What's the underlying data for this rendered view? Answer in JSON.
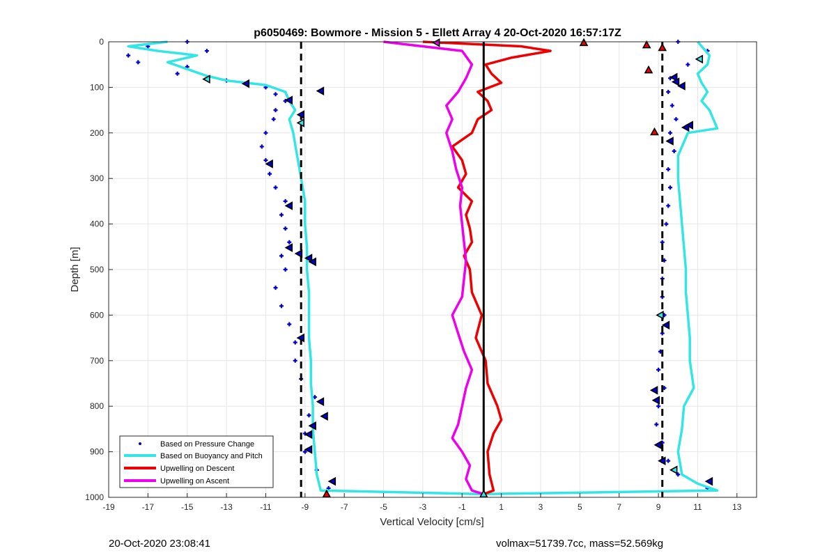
{
  "chart_data": {
    "type": "scatter",
    "title": "p6050469: Bowmore - Mission 5 - Ellett Array 4 20-Oct-2020 16:57:17Z",
    "xlabel": "Vertical Velocity [cm/s]",
    "ylabel": "Depth [m]",
    "xlim": [
      -19,
      14
    ],
    "ylim": [
      0,
      1000
    ],
    "y_reversed": true,
    "grid": true,
    "x_ticks": [
      -19,
      -17,
      -15,
      -13,
      -11,
      -9,
      -7,
      -5,
      -3,
      -1,
      1,
      3,
      5,
      7,
      9,
      11,
      13
    ],
    "y_ticks": [
      0,
      100,
      200,
      300,
      400,
      500,
      600,
      700,
      800,
      900,
      1000
    ],
    "legend_position": "bottom-left",
    "legend": [
      {
        "name": "Based on Pressure Change",
        "color": "#0000cc",
        "style": "points"
      },
      {
        "name": "Based on Buoyancy and Pitch",
        "color": "#33e6e6",
        "style": "line"
      },
      {
        "name": "Upwelling on Descent",
        "color": "#ee0000",
        "style": "line"
      },
      {
        "name": "Upwelling on Ascent",
        "color": "#ee00ee",
        "style": "line"
      }
    ],
    "reference_lines": [
      {
        "x": -9.2,
        "style": "dashed",
        "color": "#000000"
      },
      {
        "x": 0.1,
        "style": "solid",
        "color": "#000000"
      },
      {
        "x": 9.2,
        "style": "dashed",
        "color": "#000000"
      }
    ],
    "series": [
      {
        "name": "Based on Buoyancy and Pitch",
        "color": "#33e6e6",
        "profile": "descent",
        "depth": [
          0,
          10,
          20,
          30,
          45,
          60,
          75,
          85,
          95,
          110,
          130,
          150,
          170,
          200,
          250,
          300,
          350,
          400,
          450,
          500,
          550,
          600,
          650,
          700,
          750,
          800,
          850,
          900,
          950,
          985,
          993
        ],
        "velocity": [
          -16.0,
          -18.0,
          -16.5,
          -14.5,
          -16.0,
          -15.0,
          -14.0,
          -13.0,
          -11.0,
          -10.0,
          -9.8,
          -9.5,
          -9.8,
          -9.6,
          -9.4,
          -9.2,
          -9.0,
          -9.0,
          -8.9,
          -8.9,
          -8.8,
          -8.8,
          -8.8,
          -8.7,
          -8.7,
          -8.6,
          -8.6,
          -8.5,
          -8.4,
          -8.2,
          0
        ]
      },
      {
        "name": "Based on Buoyancy and Pitch",
        "color": "#33e6e6",
        "profile": "ascent",
        "depth": [
          993,
          985,
          970,
          950,
          900,
          850,
          800,
          760,
          700,
          650,
          600,
          550,
          500,
          450,
          400,
          350,
          300,
          250,
          200,
          190,
          170,
          150,
          130,
          110,
          90,
          70,
          50,
          30,
          10,
          0
        ],
        "velocity": [
          0,
          12.0,
          11.0,
          10.2,
          10.0,
          10.2,
          10.3,
          10.8,
          10.6,
          10.6,
          10.5,
          10.4,
          10.4,
          10.3,
          10.2,
          10.1,
          10.0,
          10.0,
          10.5,
          12.0,
          11.8,
          11.6,
          11.2,
          11.5,
          11.2,
          11.0,
          11.5,
          11.6,
          11.2,
          11.0
        ]
      },
      {
        "name": "Based on Pressure Change",
        "color": "#0000cc",
        "profile": "descent",
        "depth": [
          0,
          10,
          20,
          30,
          45,
          55,
          70,
          85,
          100,
          115,
          130,
          150,
          170,
          200,
          230,
          260,
          290,
          320,
          350,
          380,
          410,
          440,
          470,
          500,
          540,
          580,
          620,
          660,
          700,
          740,
          780,
          820,
          860,
          900,
          940,
          980
        ],
        "velocity": [
          -15.0,
          -17.0,
          -14.0,
          -18.0,
          -17.5,
          -15.0,
          -15.5,
          -13.0,
          -11.0,
          -10.5,
          -10.0,
          -10.5,
          -10.6,
          -11.0,
          -11.2,
          -11.0,
          -10.8,
          -10.5,
          -10.0,
          -10.2,
          -10.0,
          -9.8,
          -10.2,
          -10.0,
          -10.5,
          -10.2,
          -9.8,
          -9.5,
          -9.5,
          -9.2,
          -8.5,
          -8.8,
          -9.0,
          -9.0,
          -8.4,
          -7.8
        ]
      },
      {
        "name": "Based on Pressure Change",
        "color": "#0000cc",
        "profile": "ascent",
        "depth": [
          980,
          950,
          920,
          880,
          840,
          800,
          760,
          720,
          680,
          640,
          600,
          560,
          520,
          480,
          440,
          400,
          360,
          320,
          280,
          240,
          200,
          170,
          140,
          110,
          80,
          50,
          20,
          0
        ],
        "velocity": [
          11.5,
          10.0,
          9.5,
          9.2,
          8.9,
          9.0,
          9.3,
          9.0,
          9.1,
          9.2,
          9.3,
          9.2,
          9.2,
          9.3,
          9.2,
          9.4,
          9.5,
          9.6,
          9.5,
          9.8,
          9.6,
          9.9,
          9.7,
          9.5,
          9.6,
          10.5,
          11.5,
          10.0
        ]
      },
      {
        "name": "Upwelling on Descent",
        "color": "#ee0000",
        "depth": [
          0,
          10,
          20,
          35,
          50,
          70,
          90,
          110,
          130,
          150,
          170,
          200,
          230,
          260,
          290,
          320,
          350,
          380,
          410,
          440,
          470,
          500,
          550,
          600,
          650,
          700,
          750,
          800,
          830,
          860,
          900,
          950,
          985,
          993
        ],
        "velocity": [
          -3.0,
          2.0,
          3.5,
          1.5,
          0.2,
          0.5,
          1.0,
          -0.2,
          0.3,
          0.5,
          -0.2,
          -0.5,
          -1.5,
          -1.0,
          -0.8,
          -1.2,
          -0.5,
          -0.8,
          -0.6,
          -0.5,
          -0.9,
          -0.6,
          -0.5,
          0.0,
          -0.3,
          0.2,
          0.3,
          0.8,
          1.0,
          0.6,
          0.3,
          0.4,
          0.6,
          0.1
        ]
      },
      {
        "name": "Upwelling on Ascent",
        "color": "#ee00ee",
        "depth": [
          993,
          985,
          960,
          930,
          900,
          870,
          840,
          800,
          760,
          720,
          680,
          640,
          600,
          560,
          520,
          480,
          440,
          400,
          360,
          320,
          280,
          240,
          200,
          170,
          140,
          110,
          80,
          50,
          20,
          0
        ],
        "velocity": [
          0.1,
          -0.5,
          -0.8,
          -0.6,
          -1.0,
          -1.5,
          -1.2,
          -1.0,
          -0.8,
          -0.5,
          -0.9,
          -1.2,
          -1.5,
          -1.0,
          -0.9,
          -0.8,
          -0.9,
          -1.0,
          -1.1,
          -1.0,
          -1.3,
          -1.5,
          -1.8,
          -1.5,
          -1.8,
          -1.2,
          -0.8,
          -0.5,
          -1.0,
          -5.0
        ]
      }
    ],
    "markers": [
      {
        "type": "triangle-left",
        "x": -14.0,
        "y": 82,
        "fill": "#33e6e6"
      },
      {
        "type": "triangle-left",
        "x": -12.0,
        "y": 92,
        "fill": "#0000cc"
      },
      {
        "type": "triangle-left",
        "x": -8.2,
        "y": 108,
        "fill": "#0000cc"
      },
      {
        "type": "triangle-left",
        "x": -9.8,
        "y": 128,
        "fill": "#0000cc"
      },
      {
        "type": "triangle-left",
        "x": -9.2,
        "y": 160,
        "fill": "#0000cc"
      },
      {
        "type": "triangle-left",
        "x": -9.2,
        "y": 178,
        "fill": "#33e6e6"
      },
      {
        "type": "triangle-left",
        "x": -10.8,
        "y": 268,
        "fill": "#0000cc"
      },
      {
        "type": "triangle-left",
        "x": -9.8,
        "y": 360,
        "fill": "#0000cc"
      },
      {
        "type": "triangle-left",
        "x": -9.8,
        "y": 452,
        "fill": "#0000cc"
      },
      {
        "type": "triangle-left",
        "x": -9.3,
        "y": 465,
        "fill": "#0000cc"
      },
      {
        "type": "triangle-left",
        "x": -8.8,
        "y": 475,
        "fill": "#0000cc"
      },
      {
        "type": "triangle-left",
        "x": -8.6,
        "y": 483,
        "fill": "#0000cc"
      },
      {
        "type": "triangle-left",
        "x": -9.2,
        "y": 650,
        "fill": "#0000cc"
      },
      {
        "type": "triangle-left",
        "x": -8.2,
        "y": 790,
        "fill": "#0000cc"
      },
      {
        "type": "triangle-left",
        "x": -8.0,
        "y": 822,
        "fill": "#0000cc"
      },
      {
        "type": "triangle-left",
        "x": -8.6,
        "y": 843,
        "fill": "#0000cc"
      },
      {
        "type": "triangle-left",
        "x": -8.8,
        "y": 862,
        "fill": "#0000cc"
      },
      {
        "type": "triangle-left",
        "x": -8.8,
        "y": 895,
        "fill": "#0000cc"
      },
      {
        "type": "triangle-left",
        "x": -7.6,
        "y": 965,
        "fill": "#0000cc"
      },
      {
        "type": "triangle-up",
        "x": -7.9,
        "y": 993,
        "fill": "#ee0000"
      },
      {
        "type": "triangle-left",
        "x": -2.3,
        "y": 2,
        "fill": "#ee00ee"
      },
      {
        "type": "triangle-up",
        "x": 0.1,
        "y": 993,
        "fill": "#33e6e6"
      },
      {
        "type": "triangle-up",
        "x": 5.2,
        "y": 2,
        "fill": "#ee0000"
      },
      {
        "type": "triangle-up",
        "x": 8.4,
        "y": 7,
        "fill": "#ee0000"
      },
      {
        "type": "triangle-up",
        "x": 9.2,
        "y": 13,
        "fill": "#ee0000"
      },
      {
        "type": "triangle-left",
        "x": 11.1,
        "y": 38,
        "fill": "#33e6e6"
      },
      {
        "type": "triangle-up",
        "x": 8.5,
        "y": 62,
        "fill": "#ee0000"
      },
      {
        "type": "triangle-left",
        "x": 9.8,
        "y": 78,
        "fill": "#0000cc"
      },
      {
        "type": "triangle-left",
        "x": 9.9,
        "y": 88,
        "fill": "#0000cc"
      },
      {
        "type": "triangle-left",
        "x": 10.2,
        "y": 97,
        "fill": "#0000cc"
      },
      {
        "type": "triangle-left",
        "x": 10.6,
        "y": 183,
        "fill": "#0000cc"
      },
      {
        "type": "triangle-left",
        "x": 10.4,
        "y": 188,
        "fill": "#0000cc"
      },
      {
        "type": "triangle-up",
        "x": 8.8,
        "y": 198,
        "fill": "#ee0000"
      },
      {
        "type": "triangle-left",
        "x": 9.6,
        "y": 218,
        "fill": "#0000cc"
      },
      {
        "type": "triangle-left",
        "x": 9.1,
        "y": 600,
        "fill": "#33e6e6"
      },
      {
        "type": "triangle-left",
        "x": 9.4,
        "y": 622,
        "fill": "#0000cc"
      },
      {
        "type": "triangle-left",
        "x": 8.8,
        "y": 765,
        "fill": "#0000cc"
      },
      {
        "type": "triangle-left",
        "x": 8.9,
        "y": 787,
        "fill": "#0000cc"
      },
      {
        "type": "triangle-left",
        "x": 9.0,
        "y": 885,
        "fill": "#0000cc"
      },
      {
        "type": "triangle-left",
        "x": 9.2,
        "y": 920,
        "fill": "#0000cc"
      },
      {
        "type": "triangle-left",
        "x": 9.8,
        "y": 940,
        "fill": "#33e6e6"
      },
      {
        "type": "triangle-left",
        "x": 11.6,
        "y": 965,
        "fill": "#0000cc"
      }
    ]
  },
  "footer": {
    "timestamp": "20-Oct-2020 23:08:41",
    "summary": "volmax=51739.7cc, mass=52.569kg"
  }
}
